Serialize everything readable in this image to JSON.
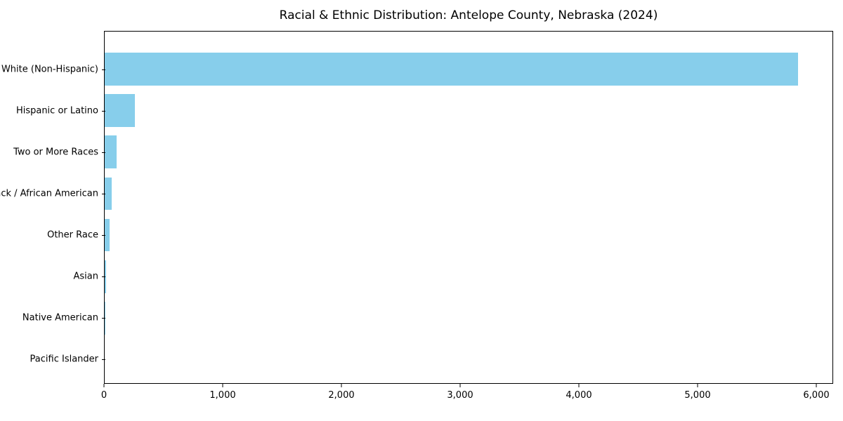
{
  "title": "Racial & Ethnic Distribution: Antelope County, Nebraska (2024)",
  "chart_data": {
    "type": "bar",
    "orientation": "horizontal",
    "title": "Racial & Ethnic Distribution: Antelope County, Nebraska (2024)",
    "categories": [
      "White (Non-Hispanic)",
      "Hispanic or Latino",
      "Two or More Races",
      "Black / African American",
      "Other Race",
      "Asian",
      "Native American",
      "Pacific Islander"
    ],
    "values": [
      5850,
      255,
      100,
      60,
      40,
      10,
      5,
      0
    ],
    "xlabel": "",
    "ylabel": "",
    "xlim": [
      0,
      6142
    ],
    "x_ticks": [
      0,
      1000,
      2000,
      3000,
      4000,
      5000,
      6000
    ],
    "x_tick_labels": [
      "0",
      "1,000",
      "2,000",
      "3,000",
      "4,000",
      "5,000",
      "6,000"
    ],
    "bar_color": "#87CEEB",
    "spine_color": "#000000",
    "text_color": "#000000",
    "grid": false,
    "legend": false
  }
}
